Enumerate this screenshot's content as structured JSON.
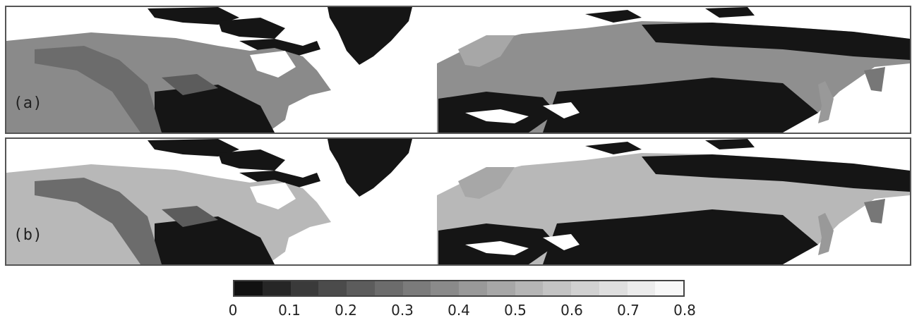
{
  "panels": [
    {
      "label": "(a)",
      "variant": "a"
    },
    {
      "label": "(b)",
      "variant": "b"
    }
  ],
  "colorbar": {
    "colors": [
      "#111111",
      "#262626",
      "#3a3a3a",
      "#4b4b4b",
      "#5c5c5c",
      "#6c6c6c",
      "#7b7b7b",
      "#8a8a8a",
      "#999999",
      "#a7a7a7",
      "#b5b5b5",
      "#c3c3c3",
      "#d1d1d1",
      "#dfdfdf",
      "#ececec",
      "#f8f8f8"
    ],
    "ticks": [
      "0",
      "0.1",
      "0.2",
      "0.3",
      "0.4",
      "0.5",
      "0.6",
      "0.7",
      "0.8"
    ]
  },
  "map_colors": {
    "land_dark": "#151515",
    "water": "#ffffff",
    "border": "#555555"
  }
}
